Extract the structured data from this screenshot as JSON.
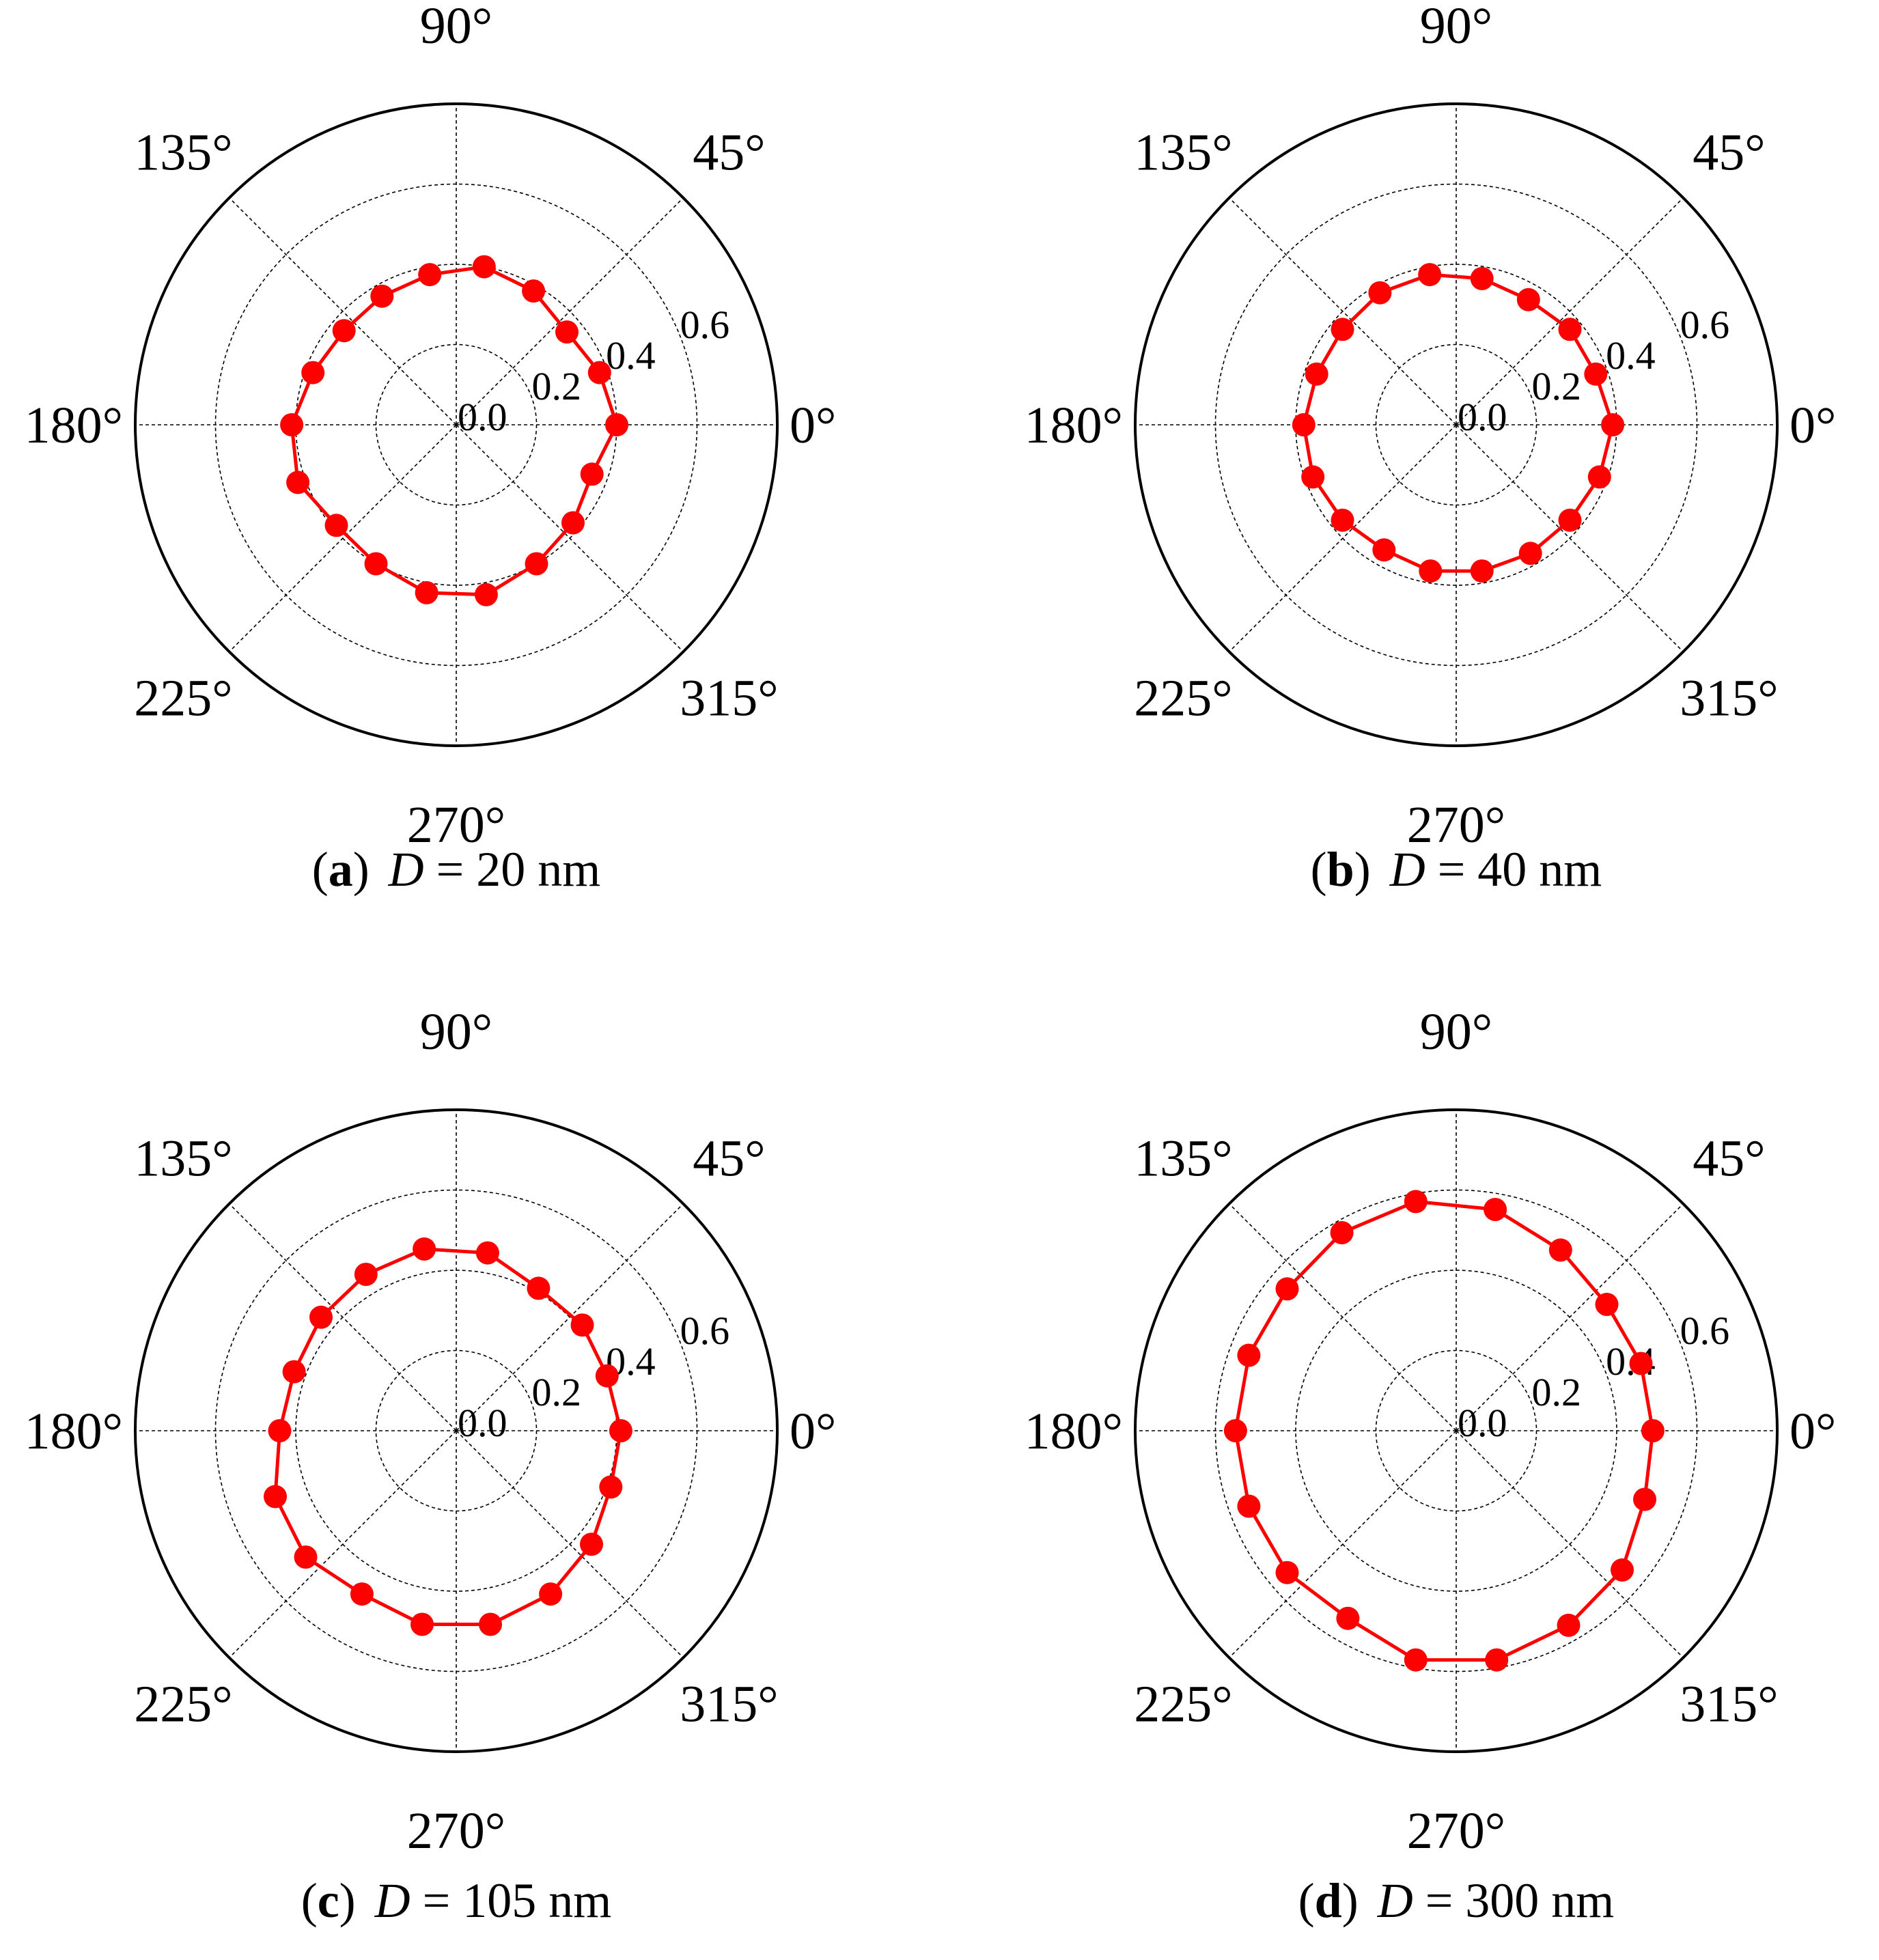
{
  "figure": {
    "panels": [
      {
        "caption": {
          "letter": "a",
          "variable": "D",
          "equals": "=",
          "value": "20 nm"
        },
        "chart_data": {
          "type": "scatter",
          "subtype": "polar line with markers",
          "theta_deg": [
            0,
            20,
            40,
            60,
            80,
            100,
            120,
            140,
            160,
            180,
            200,
            220,
            240,
            260,
            280,
            300,
            320,
            340
          ],
          "r": [
            0.4,
            0.38,
            0.36,
            0.385,
            0.4,
            0.38,
            0.37,
            0.365,
            0.38,
            0.41,
            0.42,
            0.39,
            0.4,
            0.425,
            0.43,
            0.4,
            0.38,
            0.36
          ],
          "angle_ticks": [
            "0°",
            "45°",
            "90°",
            "135°",
            "180°",
            "225°",
            "270°",
            "315°"
          ],
          "radial_ticks": [
            "0.0",
            "0.2",
            "0.4",
            "0.6"
          ],
          "rlim": [
            0.0,
            0.8
          ],
          "grid": true,
          "color": "#ff0000"
        }
      },
      {
        "caption": {
          "letter": "b",
          "variable": "D",
          "equals": "=",
          "value": "40 nm"
        },
        "chart_data": {
          "type": "scatter",
          "subtype": "polar line with markers",
          "theta_deg": [
            0,
            20,
            40,
            60,
            80,
            100,
            120,
            140,
            160,
            180,
            200,
            220,
            240,
            260,
            280,
            300,
            320,
            340
          ],
          "r": [
            0.39,
            0.37,
            0.37,
            0.36,
            0.37,
            0.38,
            0.38,
            0.37,
            0.37,
            0.38,
            0.38,
            0.37,
            0.36,
            0.37,
            0.37,
            0.37,
            0.37,
            0.38
          ],
          "angle_ticks": [
            "0°",
            "45°",
            "90°",
            "135°",
            "180°",
            "225°",
            "270°",
            "315°"
          ],
          "radial_ticks": [
            "0.0",
            "0.2",
            "0.4",
            "0.6"
          ],
          "rlim": [
            0.0,
            0.8
          ],
          "grid": true,
          "color": "#ff0000"
        }
      },
      {
        "caption": {
          "letter": "c",
          "variable": "D",
          "equals": "=",
          "value": "105 nm"
        },
        "chart_data": {
          "type": "scatter",
          "subtype": "polar line with markers",
          "theta_deg": [
            0,
            20,
            40,
            60,
            80,
            100,
            120,
            140,
            160,
            180,
            200,
            220,
            240,
            260,
            280,
            300,
            320,
            340
          ],
          "r": [
            0.41,
            0.4,
            0.41,
            0.41,
            0.45,
            0.46,
            0.45,
            0.44,
            0.43,
            0.44,
            0.48,
            0.49,
            0.47,
            0.49,
            0.49,
            0.47,
            0.44,
            0.41
          ],
          "angle_ticks": [
            "0°",
            "45°",
            "90°",
            "135°",
            "180°",
            "225°",
            "270°",
            "315°"
          ],
          "radial_ticks": [
            "0.0",
            "0.2",
            "0.4",
            "0.6"
          ],
          "rlim": [
            0.0,
            0.8
          ],
          "grid": true,
          "color": "#ff0000"
        }
      },
      {
        "caption": {
          "letter": "d",
          "variable": "D",
          "equals": "=",
          "value": "300 nm"
        },
        "chart_data": {
          "type": "scatter",
          "subtype": "polar line with markers",
          "theta_deg": [
            0,
            20,
            40,
            60,
            80,
            100,
            120,
            140,
            160,
            180,
            200,
            220,
            240,
            260,
            280,
            300,
            320,
            340
          ],
          "r": [
            0.49,
            0.49,
            0.49,
            0.52,
            0.56,
            0.58,
            0.57,
            0.55,
            0.55,
            0.55,
            0.55,
            0.55,
            0.54,
            0.58,
            0.58,
            0.56,
            0.54,
            0.5
          ],
          "angle_ticks": [
            "0°",
            "45°",
            "90°",
            "135°",
            "180°",
            "225°",
            "270°",
            "315°"
          ],
          "radial_ticks": [
            "0.0",
            "0.2",
            "0.4",
            "0.6"
          ],
          "rlim": [
            0.0,
            0.8
          ],
          "grid": true,
          "color": "#ff0000"
        }
      }
    ]
  }
}
